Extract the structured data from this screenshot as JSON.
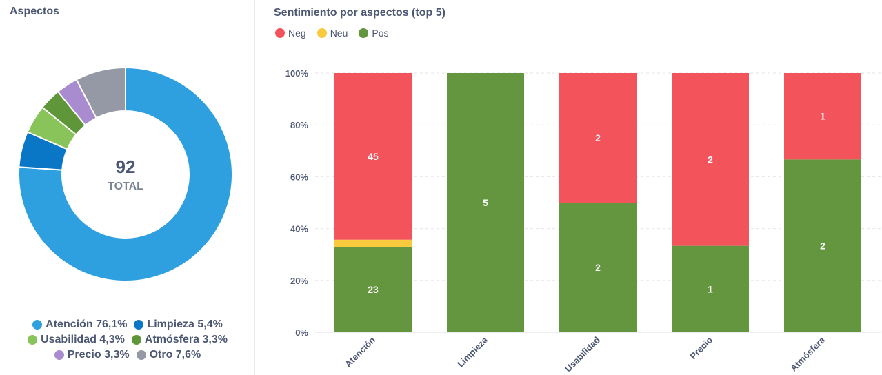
{
  "left_panel": {
    "title": "Aspectos",
    "center_value": "92",
    "center_label": "TOTAL"
  },
  "right_panel": {
    "title": "Sentimiento por aspectos (top 5)"
  },
  "chart_data": [
    {
      "type": "pie",
      "donut": true,
      "title": "Aspectos",
      "total": 92,
      "slices": [
        {
          "label": "Atención",
          "percent": 76.1,
          "percent_label": "76,1%",
          "color": "#2e9fdf"
        },
        {
          "label": "Limpieza",
          "percent": 5.4,
          "percent_label": "5,4%",
          "color": "#0a77c6"
        },
        {
          "label": "Usabilidad",
          "percent": 4.3,
          "percent_label": "4,3%",
          "color": "#88c45a"
        },
        {
          "label": "Atmósfera",
          "percent": 3.3,
          "percent_label": "3,3%",
          "color": "#5f9639"
        },
        {
          "label": "Precio",
          "percent": 3.3,
          "percent_label": "3,3%",
          "color": "#a98ccf"
        },
        {
          "label": "Otro",
          "percent": 7.6,
          "percent_label": "7,6%",
          "color": "#9499a5"
        }
      ],
      "legend_position": "bottom"
    },
    {
      "type": "bar",
      "stacked": true,
      "normalized": true,
      "title": "Sentimiento por aspectos (top 5)",
      "categories": [
        "Atención",
        "Limpieza",
        "Usabilidad",
        "Precio",
        "Atmósfera"
      ],
      "series": [
        {
          "name": "Pos",
          "color": "#64963f",
          "values": [
            23,
            5,
            2,
            1,
            2
          ]
        },
        {
          "name": "Neu",
          "color": "#f9c93e",
          "values": [
            2,
            0,
            0,
            0,
            0
          ]
        },
        {
          "name": "Neg",
          "color": "#f3535a",
          "values": [
            45,
            0,
            2,
            2,
            1
          ]
        }
      ],
      "legend_order": [
        "Neg",
        "Neu",
        "Pos"
      ],
      "y_ticks": [
        "0%",
        "20%",
        "40%",
        "60%",
        "80%",
        "100%"
      ],
      "ylim": [
        0,
        100
      ],
      "grid": true,
      "legend_position": "top-left"
    }
  ]
}
